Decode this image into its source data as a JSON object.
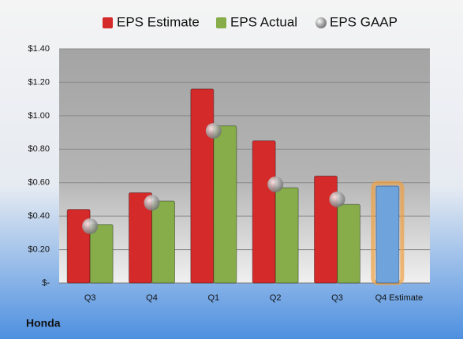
{
  "chart_data": {
    "type": "bar",
    "title": "Honda",
    "categories": [
      "Q3",
      "Q4",
      "Q1",
      "Q2",
      "Q3",
      "Q4 Estimate"
    ],
    "series": [
      {
        "name": "EPS Estimate",
        "color": "#d42a2a",
        "point_colors": [
          "#d42a2a",
          "#d42a2a",
          "#d42a2a",
          "#d42a2a",
          "#d42a2a",
          "#6fa3dc"
        ],
        "values": [
          0.44,
          0.54,
          1.16,
          0.85,
          0.64,
          0.58
        ]
      },
      {
        "name": "EPS Actual",
        "color": "#86ad4a",
        "values": [
          0.35,
          0.49,
          0.94,
          0.57,
          0.47,
          null
        ]
      },
      {
        "name": "EPS GAAP",
        "color": "#a8a8a8",
        "marker": "circle",
        "values": [
          0.34,
          0.48,
          0.91,
          0.59,
          0.5,
          null
        ]
      }
    ],
    "ylim": [
      0,
      1.4
    ],
    "yticks": [
      {
        "value": 0,
        "label": "$-"
      },
      {
        "value": 0.2,
        "label": "$0.20"
      },
      {
        "value": 0.4,
        "label": "$0.40"
      },
      {
        "value": 0.6,
        "label": "$0.60"
      },
      {
        "value": 0.8,
        "label": "$0.80"
      },
      {
        "value": 1.0,
        "label": "$1.00"
      },
      {
        "value": 1.2,
        "label": "$1.20"
      },
      {
        "value": 1.4,
        "label": "$1.40"
      }
    ],
    "grid": true
  }
}
